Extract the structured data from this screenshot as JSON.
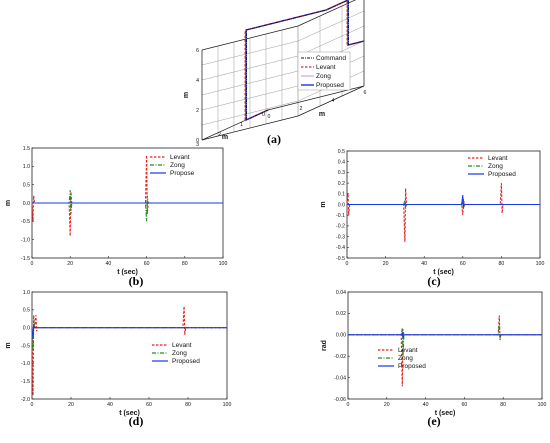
{
  "colors": {
    "levant": "#e0201e",
    "zong": "#1f8f1f",
    "proposed": "#1836e8",
    "command": "#111111",
    "zero": "#777777"
  },
  "chart_data": [
    {
      "id": "a",
      "type": "line3d",
      "caption": "(a)",
      "zlabel": "m",
      "xlabel": "m",
      "ylabel": "m",
      "zticks": [
        "0",
        "2",
        "4",
        "6"
      ],
      "xticks": [
        "0",
        "1",
        "2",
        "3"
      ],
      "yticks": [
        "0",
        "2",
        "4",
        "6"
      ],
      "legend": [
        "Command",
        "Levant",
        "Zong",
        "Proposed"
      ],
      "legend_position": "right",
      "path_points": [
        [
          0,
          0,
          0
        ],
        [
          1,
          0,
          0
        ],
        [
          1,
          0,
          6
        ],
        [
          1,
          5,
          6
        ],
        [
          0,
          5,
          6
        ],
        [
          0,
          5,
          3
        ],
        [
          0,
          6,
          3
        ]
      ]
    },
    {
      "id": "b",
      "type": "line",
      "caption": "(b)",
      "ylabel": "m",
      "xlabel": "t (sec)",
      "xlim": [
        0,
        100
      ],
      "ylim": [
        -1.5,
        1.5
      ],
      "xticks": [
        "0",
        "20",
        "40",
        "60",
        "80",
        "100"
      ],
      "yticks": [
        "-1.5",
        "-1.0",
        "-0.5",
        "0.0",
        "0.5",
        "1.0",
        "1.5"
      ],
      "legend_position": "top-right",
      "series": [
        {
          "name": "Levant",
          "style": "dash",
          "spikes": [
            [
              0.5,
              -0.5,
              0.2
            ],
            [
              20,
              -0.9,
              0.3
            ],
            [
              60,
              1.3,
              -0.3
            ]
          ]
        },
        {
          "name": "Zong",
          "style": "dashdot",
          "spikes": [
            [
              20,
              0.35,
              -0.3
            ],
            [
              60,
              -0.5,
              0.2
            ]
          ]
        },
        {
          "name": "Propose",
          "style": "solid",
          "spikes": []
        }
      ]
    },
    {
      "id": "c",
      "type": "line",
      "caption": "(c)",
      "ylabel": "m",
      "xlabel": "t (sec)",
      "xlim": [
        0,
        100
      ],
      "ylim": [
        -0.5,
        0.5
      ],
      "xticks": [
        "0",
        "20",
        "40",
        "60",
        "80",
        "100"
      ],
      "yticks": [
        "-0.5",
        "-0.4",
        "-0.3",
        "-0.2",
        "-0.1",
        "0.0",
        "0.1",
        "0.2",
        "0.3",
        "0.4",
        "0.5"
      ],
      "legend_position": "top-right",
      "series": [
        {
          "name": "Levant",
          "style": "dash",
          "spikes": [
            [
              0.5,
              0.1,
              -0.1
            ],
            [
              30,
              -0.35,
              0.15
            ],
            [
              60,
              -0.1,
              0.05
            ],
            [
              80,
              0.2,
              -0.08
            ]
          ]
        },
        {
          "name": "Zong",
          "style": "dashdot",
          "spikes": [
            [
              30,
              0.04,
              -0.04
            ],
            [
              60,
              0.04,
              -0.04
            ]
          ]
        },
        {
          "name": "Proposed",
          "style": "solid",
          "spikes": [
            [
              60,
              0.09,
              -0.03
            ]
          ]
        }
      ]
    },
    {
      "id": "d",
      "type": "line",
      "caption": "(d)",
      "ylabel": "m",
      "xlabel": "t (sec)",
      "xlim": [
        0,
        100
      ],
      "ylim": [
        -2.0,
        1.0
      ],
      "xticks": [
        "0",
        "20",
        "40",
        "60",
        "80",
        "100"
      ],
      "yticks": [
        "-2.0",
        "-1.5",
        "-1.0",
        "-0.5",
        "0.0",
        "0.5",
        "1.0"
      ],
      "legend_position": "center-right",
      "series": [
        {
          "name": "Levant",
          "style": "dash",
          "spikes": [
            [
              0.5,
              -1.9,
              0.35
            ],
            [
              2,
              0.35,
              -0.1
            ],
            [
              78,
              0.6,
              -0.2
            ]
          ]
        },
        {
          "name": "Zong",
          "style": "dashdot",
          "spikes": [
            [
              0.5,
              -0.6,
              0.2
            ]
          ]
        },
        {
          "name": "Proposed",
          "style": "solid",
          "spikes": [
            [
              0.5,
              -0.3,
              0.05
            ]
          ]
        }
      ]
    },
    {
      "id": "e",
      "type": "line",
      "caption": "(e)",
      "ylabel": "rad",
      "xlabel": "t (sec)",
      "xlim": [
        0,
        100
      ],
      "ylim": [
        -0.06,
        0.04
      ],
      "xticks": [
        "0",
        "20",
        "40",
        "60",
        "80",
        "100"
      ],
      "yticks": [
        "-0.06",
        "-0.04",
        "-0.02",
        "0.00",
        "0.02",
        "0.04"
      ],
      "legend_position": "bottom-center",
      "series": [
        {
          "name": "Levant",
          "style": "dash",
          "spikes": [
            [
              28,
              -0.048,
              0.005
            ],
            [
              78,
              0.018,
              -0.005
            ]
          ]
        },
        {
          "name": "Zong",
          "style": "dashdot",
          "spikes": [
            [
              28,
              0.006,
              -0.02
            ],
            [
              78,
              0.01,
              -0.004
            ]
          ]
        },
        {
          "name": "Proposed",
          "style": "solid",
          "spikes": [
            [
              28,
              0.002,
              -0.003
            ]
          ]
        }
      ]
    }
  ]
}
